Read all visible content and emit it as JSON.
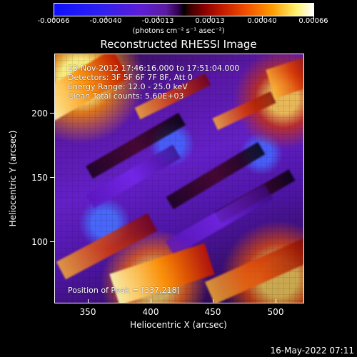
{
  "colorbar": {
    "tick_labels": [
      "-0.00066",
      "-0.00040",
      "-0.00013",
      "0.00013",
      "0.00040",
      "0.00066"
    ],
    "units": "(photons cm⁻² s⁻¹ asec⁻²)"
  },
  "title": "Reconstructed RHESSI Image",
  "image_text": {
    "time_range": "23-Nov-2012 17:46:16.000 to 17:51:04.000",
    "detectors": "Detectors: 3F 5F 6F 7F 8F, Att 0",
    "energy_range": "Energy Range: 12.0 - 25.0 keV",
    "method_counts": "Clean     Total counts: 5.60E+03",
    "peak_position": "Position of Peak = [337,218]"
  },
  "axes": {
    "x_label": "Heliocentric X (arcsec)",
    "y_label": "Heliocentric Y (arcsec)",
    "x_ticks": [
      "350",
      "400",
      "450",
      "500"
    ],
    "y_ticks": [
      "100",
      "150",
      "200"
    ]
  },
  "footer": {
    "timestamp": "16-May-2022 07:11"
  },
  "colors": {
    "background": "#000000",
    "text": "#ffffff"
  }
}
